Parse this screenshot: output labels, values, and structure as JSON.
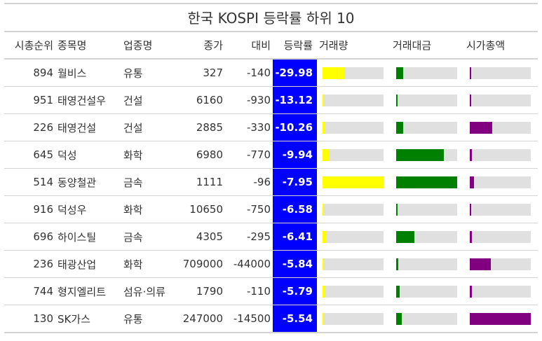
{
  "chart_data": {
    "type": "table",
    "title": "한국 KOSPI 등락률 하위 10",
    "columns": [
      "시총순위",
      "종목명",
      "업종명",
      "종가",
      "대비",
      "등락률",
      "거래량",
      "거래대금",
      "시가총액"
    ],
    "bar_colors": {
      "volume": "#ffff00",
      "amount": "#008000",
      "marketcap": "#800080"
    },
    "highlight_color": "#0000ff",
    "rows": [
      {
        "rank": "894",
        "name": "월비스",
        "sector": "유통",
        "close": "327",
        "diff": "-140",
        "pct": "-29.98",
        "volume": 0.36,
        "amount": 0.12,
        "marketcap": 0.02
      },
      {
        "rank": "951",
        "name": "태영건설우",
        "sector": "건설",
        "close": "6160",
        "diff": "-930",
        "pct": "-13.12",
        "volume": 0.02,
        "amount": 0.02,
        "marketcap": 0.02
      },
      {
        "rank": "226",
        "name": "태영건설",
        "sector": "건설",
        "close": "2885",
        "diff": "-330",
        "pct": "-10.26",
        "volume": 0.05,
        "amount": 0.12,
        "marketcap": 0.37
      },
      {
        "rank": "645",
        "name": "덕성",
        "sector": "화학",
        "close": "6980",
        "diff": "-770",
        "pct": "-9.94",
        "volume": 0.11,
        "amount": 0.78,
        "marketcap": 0.04
      },
      {
        "rank": "514",
        "name": "동양철관",
        "sector": "금속",
        "close": "1111",
        "diff": "-96",
        "pct": "-7.95",
        "volume": 1.0,
        "amount": 1.0,
        "marketcap": 0.07
      },
      {
        "rank": "916",
        "name": "덕성우",
        "sector": "화학",
        "close": "10650",
        "diff": "-750",
        "pct": "-6.58",
        "volume": 0.02,
        "amount": 0.02,
        "marketcap": 0.02
      },
      {
        "rank": "696",
        "name": "하이스틸",
        "sector": "금속",
        "close": "4305",
        "diff": "-295",
        "pct": "-6.41",
        "volume": 0.07,
        "amount": 0.3,
        "marketcap": 0.04
      },
      {
        "rank": "236",
        "name": "태광산업",
        "sector": "화학",
        "close": "709000",
        "diff": "-44000",
        "pct": "-5.84",
        "volume": 0.01,
        "amount": 0.03,
        "marketcap": 0.34
      },
      {
        "rank": "744",
        "name": "형지엘리트",
        "sector": "섬유·의류",
        "close": "1790",
        "diff": "-110",
        "pct": "-5.79",
        "volume": 0.03,
        "amount": 0.06,
        "marketcap": 0.03
      },
      {
        "rank": "130",
        "name": "SK가스",
        "sector": "유통",
        "close": "247000",
        "diff": "-14500",
        "pct": "-5.54",
        "volume": 0.01,
        "amount": 0.09,
        "marketcap": 1.0
      }
    ]
  }
}
